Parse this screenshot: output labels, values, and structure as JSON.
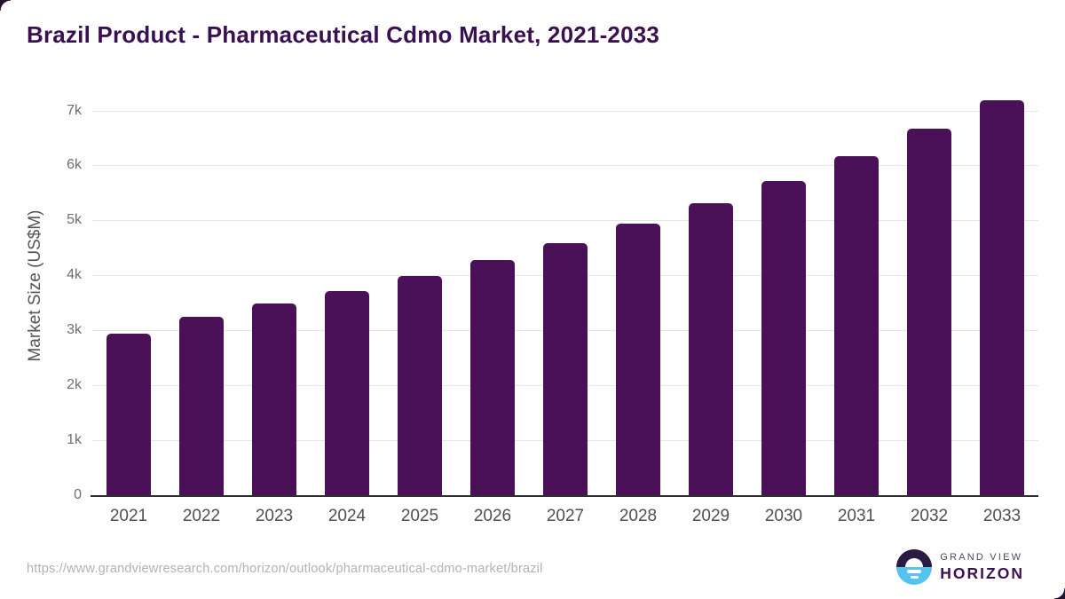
{
  "title": "Brazil Product - Pharmaceutical Cdmo Market, 2021-2033",
  "footer": {
    "source_url": "https://www.grandviewresearch.com/horizon/outlook/pharmaceutical-cdmo-market/brazil"
  },
  "logo": {
    "line1": "GRAND VIEW",
    "line2": "HORIZON"
  },
  "colors": {
    "bar": "#4A1158",
    "title": "#3B1052",
    "gridline": "#e7e7e7",
    "axis_line": "#2e2e2e",
    "y_tick_text": "#6e6e6e",
    "x_tick_text": "#4f4f4f",
    "url_text": "#b2b2b2",
    "logo_dark": "#2b1a42",
    "logo_blue": "#55c3ee"
  },
  "chart_data": {
    "type": "bar",
    "title": "Brazil Product - Pharmaceutical Cdmo Market, 2021-2033",
    "categories": [
      "2021",
      "2022",
      "2023",
      "2024",
      "2025",
      "2026",
      "2027",
      "2028",
      "2029",
      "2030",
      "2031",
      "2032",
      "2033"
    ],
    "values": [
      2950,
      3255,
      3500,
      3730,
      4000,
      4290,
      4595,
      4960,
      5325,
      5730,
      6185,
      6680,
      7210
    ],
    "xlabel": "",
    "ylabel": "Market Size (US$M)",
    "ylim": [
      0,
      7400
    ],
    "y_ticks": [
      {
        "value": 0,
        "label": "0"
      },
      {
        "value": 1000,
        "label": "1k"
      },
      {
        "value": 2000,
        "label": "2k"
      },
      {
        "value": 3000,
        "label": "3k"
      },
      {
        "value": 4000,
        "label": "4k"
      },
      {
        "value": 5000,
        "label": "5k"
      },
      {
        "value": 6000,
        "label": "6k"
      },
      {
        "value": 7000,
        "label": "7k"
      }
    ],
    "grid": "horizontal",
    "legend": "none",
    "bar_color": "#4A1158"
  }
}
